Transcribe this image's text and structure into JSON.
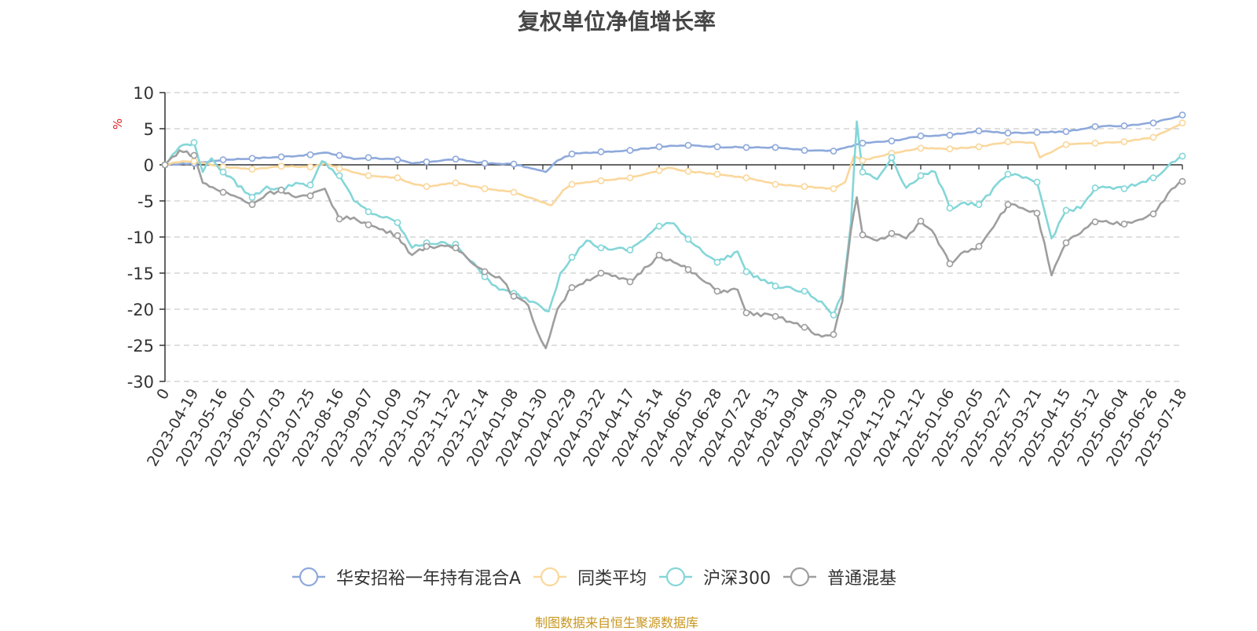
{
  "chart_data": {
    "type": "line",
    "title": "复权单位净值增长率",
    "ylabel": "%",
    "xlabel": "",
    "ylim": [
      -30,
      10
    ],
    "yticks": [
      10,
      5,
      0,
      -5,
      -10,
      -15,
      -20,
      -25,
      -30
    ],
    "x_tick_labels": [
      "0",
      "2023-04-19",
      "2023-05-16",
      "2023-06-07",
      "2023-07-03",
      "2023-07-25",
      "2023-08-16",
      "2023-09-07",
      "2023-10-09",
      "2023-10-31",
      "2023-11-22",
      "2023-12-14",
      "2024-01-08",
      "2024-01-30",
      "2024-02-29",
      "2024-03-22",
      "2024-04-17",
      "2024-05-14",
      "2024-06-05",
      "2024-06-28",
      "2024-07-22",
      "2024-08-13",
      "2024-09-04",
      "2024-09-30",
      "2024-10-29",
      "2024-11-20",
      "2024-12-12",
      "2025-01-06",
      "2025-02-05",
      "2025-02-27",
      "2025-03-21",
      "2025-04-15",
      "2025-05-12",
      "2025-06-04",
      "2025-06-26",
      "2025-07-18"
    ],
    "legend_position": "bottom",
    "grid": "horizontal-dashed",
    "series": [
      {
        "name": "华安招裕一年持有混合A",
        "color": "#8ea9db",
        "keypoints": [
          [
            0,
            0
          ],
          [
            1,
            0.2
          ],
          [
            2,
            0.7
          ],
          [
            3,
            0.9
          ],
          [
            4,
            1.1
          ],
          [
            5,
            1.4
          ],
          [
            5.5,
            1.7
          ],
          [
            6,
            1.3
          ],
          [
            6.5,
            0.8
          ],
          [
            7,
            1.0
          ],
          [
            8,
            0.7
          ],
          [
            8.5,
            0.2
          ],
          [
            9,
            0.4
          ],
          [
            10,
            0.8
          ],
          [
            11,
            0.2
          ],
          [
            12,
            0.1
          ],
          [
            12.6,
            -0.5
          ],
          [
            13.1,
            -1.0
          ],
          [
            13.5,
            0.6
          ],
          [
            14,
            1.5
          ],
          [
            15,
            1.8
          ],
          [
            16,
            2.0
          ],
          [
            17,
            2.5
          ],
          [
            18,
            2.7
          ],
          [
            19,
            2.5
          ],
          [
            20,
            2.4
          ],
          [
            21,
            2.4
          ],
          [
            22,
            2.0
          ],
          [
            23,
            1.9
          ],
          [
            23.5,
            2.5
          ],
          [
            24,
            3.0
          ],
          [
            25,
            3.3
          ],
          [
            26,
            4.0
          ],
          [
            27,
            4.1
          ],
          [
            28,
            4.7
          ],
          [
            29,
            4.4
          ],
          [
            30,
            4.5
          ],
          [
            31,
            4.6
          ],
          [
            32,
            5.3
          ],
          [
            33,
            5.4
          ],
          [
            34,
            5.8
          ],
          [
            35,
            6.9
          ]
        ]
      },
      {
        "name": "同类平均",
        "color": "#fad79b",
        "keypoints": [
          [
            0,
            0
          ],
          [
            0.6,
            0.5
          ],
          [
            1,
            0.5
          ],
          [
            2,
            -0.3
          ],
          [
            3,
            -0.6
          ],
          [
            4,
            -0.2
          ],
          [
            5,
            -0.3
          ],
          [
            5.5,
            0.2
          ],
          [
            6,
            -0.5
          ],
          [
            7,
            -1.5
          ],
          [
            8,
            -1.8
          ],
          [
            8.5,
            -2.6
          ],
          [
            9,
            -3.0
          ],
          [
            10,
            -2.5
          ],
          [
            11,
            -3.3
          ],
          [
            12,
            -3.8
          ],
          [
            12.8,
            -4.9
          ],
          [
            13.3,
            -5.6
          ],
          [
            13.7,
            -3.5
          ],
          [
            14,
            -2.7
          ],
          [
            15,
            -2.2
          ],
          [
            16,
            -1.8
          ],
          [
            17,
            -0.8
          ],
          [
            17.3,
            -0.4
          ],
          [
            18,
            -0.9
          ],
          [
            19,
            -1.3
          ],
          [
            20,
            -1.8
          ],
          [
            21,
            -2.7
          ],
          [
            22,
            -3.0
          ],
          [
            23,
            -3.3
          ],
          [
            23.4,
            -2.4
          ],
          [
            23.7,
            1.2
          ],
          [
            24,
            0.6
          ],
          [
            25,
            1.6
          ],
          [
            26,
            2.3
          ],
          [
            27,
            2.2
          ],
          [
            28,
            2.5
          ],
          [
            29,
            3.2
          ],
          [
            29.9,
            3.0
          ],
          [
            30.1,
            1.0
          ],
          [
            31,
            2.8
          ],
          [
            32,
            3.0
          ],
          [
            33,
            3.2
          ],
          [
            34,
            3.8
          ],
          [
            35,
            5.8
          ]
        ]
      },
      {
        "name": "沪深300",
        "color": "#84d6d8",
        "keypoints": [
          [
            0,
            0
          ],
          [
            0.5,
            2.5
          ],
          [
            1,
            3.1
          ],
          [
            1.3,
            -1.0
          ],
          [
            1.6,
            0.9
          ],
          [
            2,
            -1.0
          ],
          [
            3,
            -4.5
          ],
          [
            3.5,
            -3.0
          ],
          [
            4,
            -3.5
          ],
          [
            4.5,
            -2.5
          ],
          [
            5,
            -2.8
          ],
          [
            5.4,
            0.5
          ],
          [
            6,
            -1.5
          ],
          [
            6.5,
            -5.0
          ],
          [
            7,
            -6.5
          ],
          [
            8,
            -8.0
          ],
          [
            8.5,
            -11.5
          ],
          [
            9,
            -10.8
          ],
          [
            10,
            -11.0
          ],
          [
            11,
            -15.5
          ],
          [
            11.5,
            -17.3
          ],
          [
            12,
            -17.8
          ],
          [
            12.8,
            -19.2
          ],
          [
            13.2,
            -20.3
          ],
          [
            13.6,
            -15.0
          ],
          [
            14,
            -12.8
          ],
          [
            14.5,
            -10.5
          ],
          [
            15,
            -11.5
          ],
          [
            16,
            -11.8
          ],
          [
            17,
            -8.5
          ],
          [
            17.5,
            -8.1
          ],
          [
            18,
            -10.3
          ],
          [
            19,
            -13.5
          ],
          [
            19.7,
            -12.0
          ],
          [
            20,
            -14.8
          ],
          [
            21,
            -16.8
          ],
          [
            22,
            -17.5
          ],
          [
            22.7,
            -19.5
          ],
          [
            23,
            -20.8
          ],
          [
            23.3,
            -18.0
          ],
          [
            23.6,
            -8.0
          ],
          [
            23.8,
            6.0
          ],
          [
            24,
            -1.0
          ],
          [
            24.5,
            -2.0
          ],
          [
            25,
            1.0
          ],
          [
            25.5,
            -3.2
          ],
          [
            26,
            -1.5
          ],
          [
            26.5,
            -1.0
          ],
          [
            27,
            -6.0
          ],
          [
            27.5,
            -5.2
          ],
          [
            28,
            -5.5
          ],
          [
            29,
            -1.3
          ],
          [
            29.5,
            -1.8
          ],
          [
            30,
            -2.4
          ],
          [
            30.5,
            -10.2
          ],
          [
            31,
            -6.3
          ],
          [
            31.5,
            -6.0
          ],
          [
            32,
            -3.2
          ],
          [
            33,
            -3.3
          ],
          [
            34,
            -1.8
          ],
          [
            34.5,
            -0.2
          ],
          [
            35,
            1.2
          ]
        ]
      },
      {
        "name": "普通混基",
        "color": "#9e9e9e",
        "keypoints": [
          [
            0,
            0
          ],
          [
            0.5,
            2.0
          ],
          [
            1,
            1.3
          ],
          [
            1.3,
            -2.5
          ],
          [
            2,
            -3.8
          ],
          [
            2.5,
            -4.5
          ],
          [
            3,
            -5.5
          ],
          [
            3.5,
            -4.0
          ],
          [
            4,
            -3.5
          ],
          [
            4.5,
            -4.5
          ],
          [
            5,
            -4.3
          ],
          [
            5.5,
            -3.3
          ],
          [
            6,
            -7.5
          ],
          [
            6.5,
            -7.3
          ],
          [
            7,
            -8.3
          ],
          [
            8,
            -9.8
          ],
          [
            8.5,
            -12.5
          ],
          [
            9,
            -11.3
          ],
          [
            10,
            -11.5
          ],
          [
            11,
            -14.8
          ],
          [
            11.5,
            -15.5
          ],
          [
            12,
            -18.2
          ],
          [
            12.5,
            -19.5
          ],
          [
            12.8,
            -23.0
          ],
          [
            13.1,
            -25.4
          ],
          [
            13.5,
            -20.0
          ],
          [
            14,
            -17.0
          ],
          [
            15,
            -15.0
          ],
          [
            16,
            -16.2
          ],
          [
            17,
            -12.5
          ],
          [
            17.5,
            -13.5
          ],
          [
            18,
            -14.5
          ],
          [
            19,
            -17.5
          ],
          [
            19.7,
            -17.3
          ],
          [
            20,
            -20.5
          ],
          [
            21,
            -21.0
          ],
          [
            22,
            -22.5
          ],
          [
            22.6,
            -23.8
          ],
          [
            23,
            -23.5
          ],
          [
            23.3,
            -19.0
          ],
          [
            23.6,
            -9.0
          ],
          [
            23.8,
            -4.5
          ],
          [
            24,
            -9.7
          ],
          [
            24.5,
            -10.5
          ],
          [
            25,
            -9.5
          ],
          [
            25.5,
            -10.2
          ],
          [
            26,
            -7.8
          ],
          [
            26.5,
            -9.8
          ],
          [
            27,
            -13.7
          ],
          [
            27.5,
            -12.0
          ],
          [
            28,
            -11.3
          ],
          [
            29,
            -5.5
          ],
          [
            29.5,
            -6.0
          ],
          [
            30,
            -6.7
          ],
          [
            30.5,
            -15.3
          ],
          [
            31,
            -10.8
          ],
          [
            32,
            -7.9
          ],
          [
            33,
            -8.2
          ],
          [
            34,
            -6.8
          ],
          [
            34.5,
            -4.0
          ],
          [
            35,
            -2.3
          ]
        ]
      }
    ]
  },
  "footer": {
    "source": "制图数据来自恒生聚源数据库"
  }
}
